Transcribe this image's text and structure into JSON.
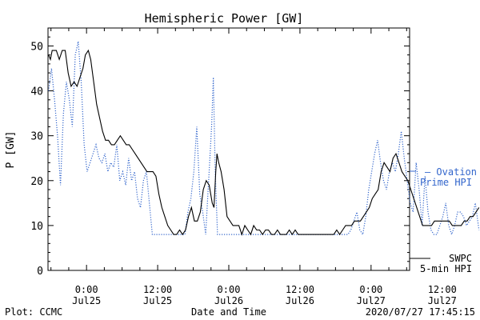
{
  "chart_data": {
    "type": "line",
    "title": "Hemispheric Power [GW]",
    "xlabel": "Date and Time",
    "ylabel": "P [GW]",
    "ylim": [
      0,
      54
    ],
    "xlim_hours": [
      -6.5,
      54.5
    ],
    "y_ticks": [
      0,
      10,
      20,
      30,
      40,
      50
    ],
    "x_ticks": [
      {
        "hour": 0,
        "time": "0:00",
        "date": "Jul25"
      },
      {
        "hour": 12,
        "time": "12:00",
        "date": "Jul25"
      },
      {
        "hour": 24,
        "time": "0:00",
        "date": "Jul26"
      },
      {
        "hour": 36,
        "time": "12:00",
        "date": "Jul26"
      },
      {
        "hour": 48,
        "time": "0:00",
        "date": "Jul27"
      },
      {
        "hour": 60,
        "time": "12:00",
        "date": "Jul27"
      }
    ],
    "series": [
      {
        "name": "SWPC 5-min HPI",
        "legend": [
          "SWPC",
          "5-min HPI"
        ],
        "color": "#000000",
        "style": "solid",
        "points": [
          [
            -6.4,
            48
          ],
          [
            -6.1,
            47
          ],
          [
            -5.8,
            49
          ],
          [
            -5.1,
            49
          ],
          [
            -4.6,
            47
          ],
          [
            -4.1,
            49
          ],
          [
            -3.6,
            49
          ],
          [
            -3.1,
            44
          ],
          [
            -2.6,
            41
          ],
          [
            -2.1,
            42
          ],
          [
            -1.6,
            41
          ],
          [
            -1.1,
            43
          ],
          [
            -0.6,
            45
          ],
          [
            -0.2,
            48
          ],
          [
            0.3,
            49
          ],
          [
            0.7,
            47
          ],
          [
            1.2,
            42
          ],
          [
            1.7,
            37
          ],
          [
            2.2,
            34
          ],
          [
            2.7,
            31
          ],
          [
            3.2,
            29
          ],
          [
            3.7,
            29
          ],
          [
            4.2,
            28
          ],
          [
            4.7,
            28
          ],
          [
            5.2,
            29
          ],
          [
            5.7,
            30
          ],
          [
            6.2,
            29
          ],
          [
            6.7,
            28
          ],
          [
            7.2,
            28
          ],
          [
            7.7,
            27
          ],
          [
            8.2,
            26
          ],
          [
            8.7,
            25
          ],
          [
            9.2,
            24
          ],
          [
            9.7,
            23
          ],
          [
            10.2,
            22
          ],
          [
            10.7,
            22
          ],
          [
            11.2,
            22
          ],
          [
            11.7,
            21
          ],
          [
            12.2,
            17
          ],
          [
            12.7,
            14
          ],
          [
            13.2,
            12
          ],
          [
            13.7,
            10
          ],
          [
            14.2,
            9
          ],
          [
            14.7,
            8
          ],
          [
            15.2,
            8
          ],
          [
            15.7,
            9
          ],
          [
            16.2,
            8
          ],
          [
            16.7,
            9
          ],
          [
            17.2,
            12
          ],
          [
            17.7,
            14
          ],
          [
            18.2,
            11
          ],
          [
            18.7,
            11
          ],
          [
            19.2,
            13
          ],
          [
            19.7,
            18
          ],
          [
            20.2,
            20
          ],
          [
            20.7,
            19
          ],
          [
            21.2,
            15
          ],
          [
            21.5,
            14
          ],
          [
            21.8,
            22
          ],
          [
            22.0,
            26
          ],
          [
            22.3,
            24
          ],
          [
            22.7,
            22
          ],
          [
            23.2,
            18
          ],
          [
            23.7,
            12
          ],
          [
            24.2,
            11
          ],
          [
            24.7,
            10
          ],
          [
            25.2,
            10
          ],
          [
            25.7,
            10
          ],
          [
            26.2,
            8
          ],
          [
            26.7,
            10
          ],
          [
            27.2,
            9
          ],
          [
            27.7,
            8
          ],
          [
            28.2,
            10
          ],
          [
            28.7,
            9
          ],
          [
            29.2,
            9
          ],
          [
            29.7,
            8
          ],
          [
            30.2,
            9
          ],
          [
            30.7,
            9
          ],
          [
            31.2,
            8
          ],
          [
            31.7,
            8
          ],
          [
            32.2,
            9
          ],
          [
            32.7,
            8
          ],
          [
            33.2,
            8
          ],
          [
            33.7,
            8
          ],
          [
            34.2,
            9
          ],
          [
            34.7,
            8
          ],
          [
            35.2,
            9
          ],
          [
            35.7,
            8
          ],
          [
            36.2,
            8
          ],
          [
            36.7,
            8
          ],
          [
            37.2,
            8
          ],
          [
            37.7,
            8
          ],
          [
            38.2,
            8
          ],
          [
            38.7,
            8
          ],
          [
            39.2,
            8
          ],
          [
            39.7,
            8
          ],
          [
            40.2,
            8
          ],
          [
            40.7,
            8
          ],
          [
            41.2,
            8
          ],
          [
            41.7,
            8
          ],
          [
            42.2,
            9
          ],
          [
            42.7,
            8
          ],
          [
            43.2,
            9
          ],
          [
            43.7,
            10
          ],
          [
            44.2,
            10
          ],
          [
            44.7,
            10
          ],
          [
            45.2,
            11
          ],
          [
            45.7,
            11
          ],
          [
            46.2,
            11
          ],
          [
            46.7,
            12
          ],
          [
            47.2,
            13
          ],
          [
            47.7,
            14
          ],
          [
            48.2,
            16
          ],
          [
            48.7,
            17
          ],
          [
            49.2,
            18
          ],
          [
            49.7,
            22
          ],
          [
            50.2,
            24
          ],
          [
            50.7,
            23
          ],
          [
            51.2,
            22
          ],
          [
            51.7,
            25
          ],
          [
            52.2,
            26
          ],
          [
            52.7,
            24
          ],
          [
            53.2,
            22
          ],
          [
            53.7,
            21
          ],
          [
            54.2,
            20
          ],
          [
            54.7,
            18
          ],
          [
            55.2,
            16
          ],
          [
            55.7,
            14
          ],
          [
            56.2,
            12
          ],
          [
            56.7,
            10
          ],
          [
            57.2,
            10
          ],
          [
            57.7,
            10
          ],
          [
            58.2,
            10
          ],
          [
            58.7,
            11
          ],
          [
            59.2,
            11
          ],
          [
            59.7,
            11
          ],
          [
            60.2,
            11
          ],
          [
            60.7,
            11
          ],
          [
            61.2,
            11
          ],
          [
            61.7,
            10
          ],
          [
            62.2,
            10
          ],
          [
            62.7,
            10
          ],
          [
            63.2,
            10
          ],
          [
            63.7,
            11
          ],
          [
            64.2,
            11
          ],
          [
            64.7,
            12
          ],
          [
            65.2,
            12
          ],
          [
            65.7,
            13
          ],
          [
            66.2,
            14
          ]
        ]
      },
      {
        "name": "Ovation Prime HPI",
        "legend": [
          "— Ovation",
          "Prime HPI"
        ],
        "color": "#3366cc",
        "style": "dotted",
        "points": [
          [
            -6.4,
            40
          ],
          [
            -5.9,
            45
          ],
          [
            -5.4,
            38
          ],
          [
            -4.9,
            30
          ],
          [
            -4.4,
            19
          ],
          [
            -3.9,
            35
          ],
          [
            -3.4,
            42
          ],
          [
            -2.9,
            38
          ],
          [
            -2.4,
            32
          ],
          [
            -1.9,
            48
          ],
          [
            -1.4,
            51
          ],
          [
            -0.9,
            42
          ],
          [
            -0.4,
            28
          ],
          [
            0.1,
            22
          ],
          [
            0.6,
            24
          ],
          [
            1.1,
            26
          ],
          [
            1.6,
            28
          ],
          [
            2.1,
            25
          ],
          [
            2.6,
            24
          ],
          [
            3.1,
            26
          ],
          [
            3.6,
            22
          ],
          [
            4.1,
            24
          ],
          [
            4.6,
            23
          ],
          [
            5.1,
            28
          ],
          [
            5.6,
            20
          ],
          [
            6.1,
            22
          ],
          [
            6.6,
            19
          ],
          [
            7.1,
            25
          ],
          [
            7.6,
            20
          ],
          [
            8.1,
            22
          ],
          [
            8.6,
            16
          ],
          [
            9.1,
            14
          ],
          [
            9.6,
            20
          ],
          [
            10.1,
            22
          ],
          [
            10.6,
            15
          ],
          [
            11.1,
            8
          ],
          [
            11.6,
            8
          ],
          [
            12.1,
            8
          ],
          [
            12.6,
            8
          ],
          [
            13.1,
            8
          ],
          [
            13.6,
            8
          ],
          [
            14.1,
            8
          ],
          [
            14.6,
            8
          ],
          [
            15.1,
            8
          ],
          [
            15.6,
            8
          ],
          [
            16.1,
            8
          ],
          [
            16.6,
            8
          ],
          [
            17.1,
            13
          ],
          [
            17.6,
            16
          ],
          [
            18.1,
            22
          ],
          [
            18.6,
            32
          ],
          [
            19.1,
            17
          ],
          [
            19.6,
            13
          ],
          [
            20.1,
            8
          ],
          [
            20.6,
            20
          ],
          [
            21.1,
            32
          ],
          [
            21.4,
            43
          ],
          [
            21.7,
            22
          ],
          [
            22.1,
            8
          ],
          [
            22.6,
            8
          ],
          [
            23.1,
            8
          ],
          [
            23.6,
            8
          ],
          [
            24.1,
            8
          ],
          [
            24.6,
            8
          ],
          [
            25.1,
            8
          ],
          [
            25.6,
            8
          ],
          [
            26.1,
            8
          ],
          [
            26.6,
            8
          ],
          [
            27.1,
            8
          ],
          [
            27.6,
            8
          ],
          [
            28.1,
            8
          ],
          [
            28.6,
            8
          ],
          [
            29.1,
            8
          ],
          [
            29.6,
            8
          ],
          [
            30.1,
            8
          ],
          [
            30.6,
            8
          ],
          [
            31.1,
            8
          ],
          [
            31.6,
            8
          ],
          [
            32.1,
            8
          ],
          [
            32.6,
            8
          ],
          [
            33.1,
            8
          ],
          [
            33.6,
            8
          ],
          [
            34.1,
            8
          ],
          [
            34.6,
            8
          ],
          [
            35.1,
            8
          ],
          [
            35.6,
            8
          ],
          [
            36.1,
            8
          ],
          [
            36.6,
            8
          ],
          [
            37.1,
            8
          ],
          [
            37.6,
            8
          ],
          [
            38.1,
            8
          ],
          [
            38.6,
            8
          ],
          [
            39.1,
            8
          ],
          [
            39.6,
            8
          ],
          [
            40.1,
            8
          ],
          [
            40.6,
            8
          ],
          [
            41.1,
            8
          ],
          [
            41.6,
            8
          ],
          [
            42.1,
            8
          ],
          [
            42.6,
            8
          ],
          [
            43.1,
            8
          ],
          [
            43.6,
            8
          ],
          [
            44.1,
            8
          ],
          [
            44.6,
            9
          ],
          [
            45.1,
            11
          ],
          [
            45.6,
            13
          ],
          [
            46.1,
            9
          ],
          [
            46.6,
            8
          ],
          [
            47.1,
            12
          ],
          [
            47.6,
            18
          ],
          [
            48.1,
            22
          ],
          [
            48.6,
            26
          ],
          [
            49.1,
            29
          ],
          [
            49.6,
            24
          ],
          [
            50.1,
            20
          ],
          [
            50.6,
            18
          ],
          [
            51.1,
            22
          ],
          [
            51.6,
            24
          ],
          [
            52.1,
            22
          ],
          [
            52.6,
            26
          ],
          [
            53.1,
            31
          ],
          [
            53.6,
            25
          ],
          [
            54.1,
            20
          ],
          [
            54.6,
            15
          ],
          [
            55.1,
            13
          ],
          [
            55.6,
            24
          ],
          [
            56.1,
            18
          ],
          [
            56.6,
            10
          ],
          [
            57.1,
            21
          ],
          [
            57.6,
            13
          ],
          [
            58.1,
            9
          ],
          [
            58.6,
            8
          ],
          [
            59.1,
            8
          ],
          [
            59.6,
            10
          ],
          [
            60.1,
            12
          ],
          [
            60.6,
            15
          ],
          [
            61.1,
            10
          ],
          [
            61.6,
            8
          ],
          [
            62.1,
            10
          ],
          [
            62.6,
            13
          ],
          [
            63.1,
            13
          ],
          [
            63.6,
            12
          ],
          [
            64.1,
            10
          ],
          [
            64.6,
            11
          ],
          [
            65.1,
            12
          ],
          [
            65.6,
            15
          ],
          [
            66.2,
            9
          ]
        ]
      }
    ],
    "grid": false,
    "legend_position": "right"
  },
  "footer": {
    "left": "Plot: CCMC",
    "right": "2020/07/27 17:45:15"
  }
}
